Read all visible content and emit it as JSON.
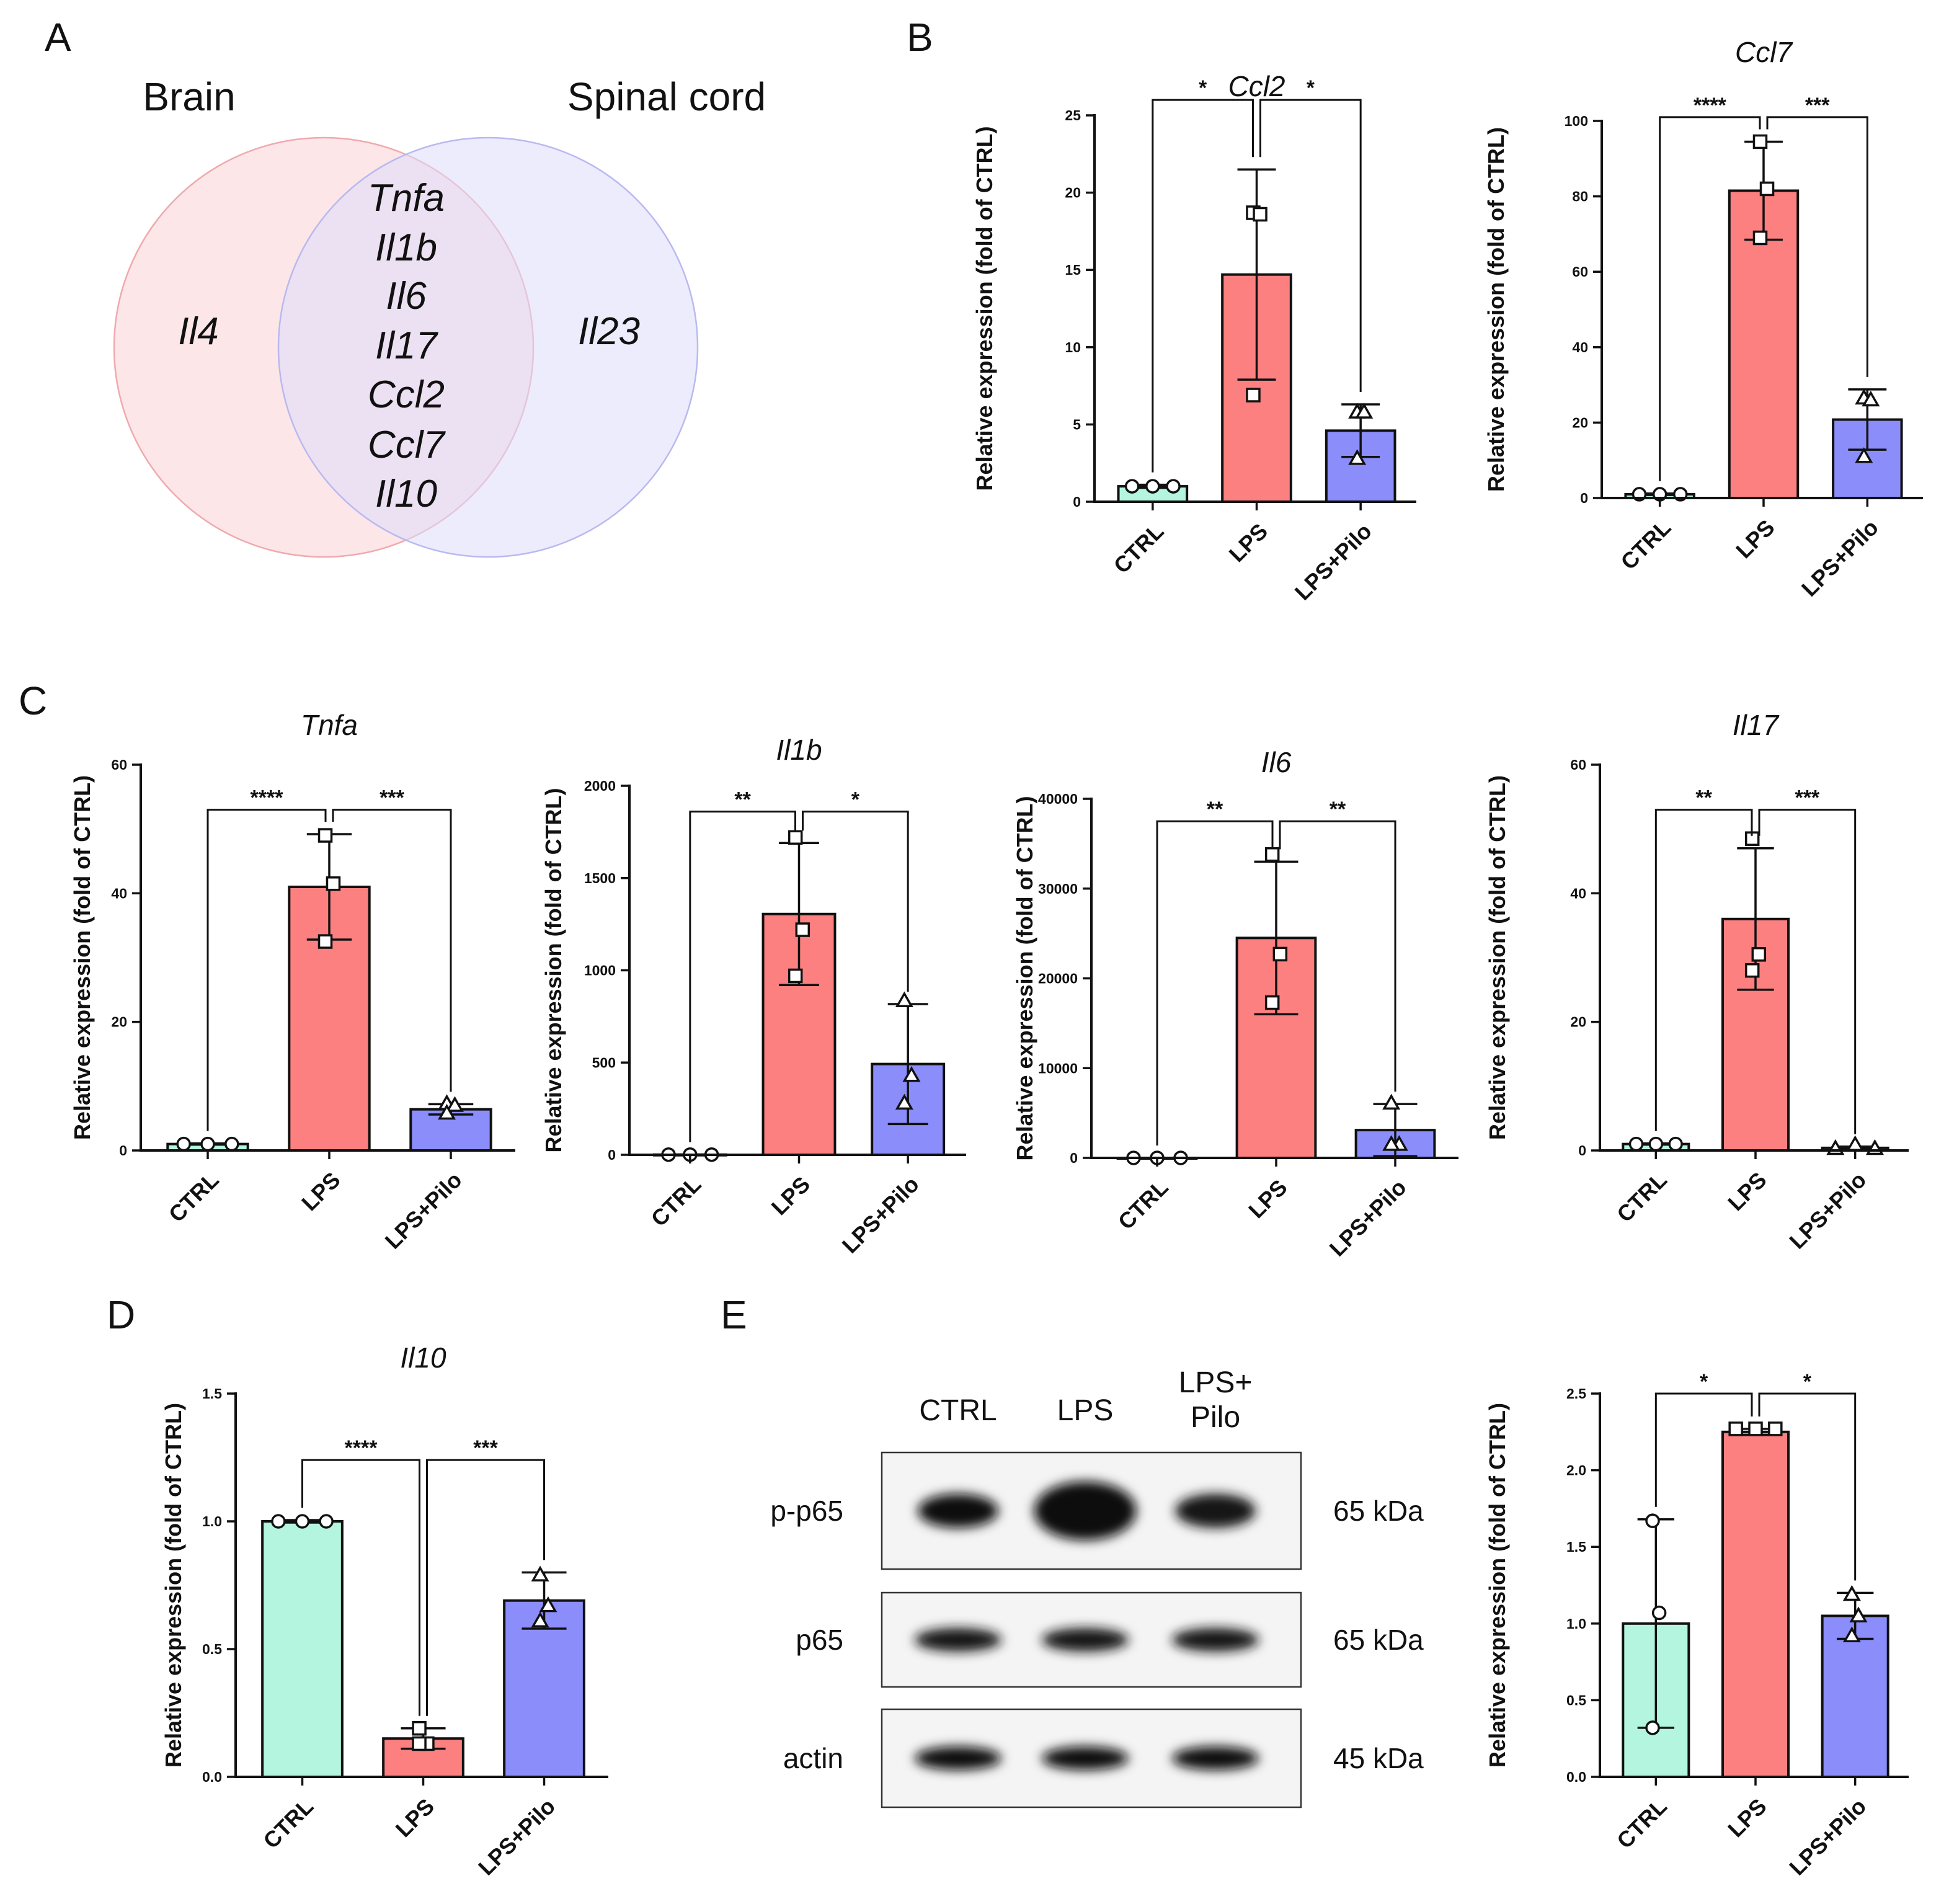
{
  "panels": {
    "A": "A",
    "B": "B",
    "C": "C",
    "D": "D",
    "E": "E"
  },
  "colors": {
    "CTRL": "#b3f5df",
    "LPS": "#fc8080",
    "LPS+Pilo": "#8b8dfb",
    "venn_left": "#fbd9dc",
    "venn_right": "#dcdcfc",
    "axis": "#111111"
  },
  "venn": {
    "left_set": "Brain",
    "right_set": "Spinal cord",
    "left_only": [
      "Il4"
    ],
    "right_only": [
      "Il23"
    ],
    "shared": [
      "Tnfa",
      "Il1b",
      "Il6",
      "Il17",
      "Ccl2",
      "Ccl7",
      "Il10"
    ]
  },
  "ylabel": "Relative expression (fold of CTRL)",
  "chart_data": [
    {
      "id": "ccl2",
      "type": "bar",
      "title": "Ccl2",
      "categories": [
        "CTRL",
        "LPS",
        "LPS+Pilo"
      ],
      "values": [
        1.0,
        14.7,
        4.6
      ],
      "errors": [
        0.1,
        6.8,
        1.7
      ],
      "points": [
        [
          1.0,
          1.0,
          1.0
        ],
        [
          18.7,
          18.6,
          6.9
        ],
        [
          5.8,
          5.8,
          2.8
        ]
      ],
      "markers": [
        "circle",
        "square",
        "triangle"
      ],
      "yticks": [
        0,
        5,
        10,
        15,
        20,
        25
      ],
      "ylim": [
        0,
        25
      ],
      "comparisons": [
        {
          "from": 0,
          "to": 1,
          "label": "*",
          "level": 26.0
        },
        {
          "from": 1,
          "to": 2,
          "label": "*",
          "level": 26.0
        }
      ]
    },
    {
      "id": "ccl7",
      "type": "bar",
      "title": "Ccl7",
      "categories": [
        "CTRL",
        "LPS",
        "LPS+Pilo"
      ],
      "values": [
        1.0,
        81.5,
        20.8
      ],
      "errors": [
        0.2,
        13.0,
        8.0
      ],
      "points": [
        [
          1.0,
          1.0,
          1.0
        ],
        [
          94.5,
          82.0,
          69.0
        ],
        [
          26.5,
          26.0,
          11.0
        ]
      ],
      "markers": [
        "circle",
        "square",
        "triangle"
      ],
      "yticks": [
        0,
        20,
        40,
        60,
        80,
        100
      ],
      "ylim": [
        0,
        100
      ],
      "comparisons": [
        {
          "from": 0,
          "to": 1,
          "label": "****",
          "level": 101.0
        },
        {
          "from": 1,
          "to": 2,
          "label": "***",
          "level": 101.0
        }
      ]
    },
    {
      "id": "tnfa",
      "type": "bar",
      "title": "Tnfa",
      "categories": [
        "CTRL",
        "LPS",
        "LPS+Pilo"
      ],
      "values": [
        1.0,
        41.0,
        6.4
      ],
      "errors": [
        0.1,
        8.2,
        0.8
      ],
      "points": [
        [
          1.0,
          1.0,
          1.0
        ],
        [
          49.0,
          41.5,
          32.5
        ],
        [
          7.3,
          7.0,
          5.8
        ]
      ],
      "markers": [
        "circle",
        "square",
        "triangle"
      ],
      "yticks": [
        0,
        20,
        40,
        60
      ],
      "ylim": [
        0,
        60
      ],
      "comparisons": [
        {
          "from": 0,
          "to": 1,
          "label": "****",
          "level": 53.0
        },
        {
          "from": 1,
          "to": 2,
          "label": "***",
          "level": 53.0
        }
      ]
    },
    {
      "id": "il1b",
      "type": "bar",
      "title": "Il1b",
      "categories": [
        "CTRL",
        "LPS",
        "LPS+Pilo"
      ],
      "values": [
        1.0,
        1305,
        492
      ],
      "errors": [
        0.1,
        385,
        325
      ],
      "points": [
        [
          1.0,
          1.0,
          1.0
        ],
        [
          1720,
          1220,
          970
        ],
        [
          835,
          430,
          280
        ]
      ],
      "markers": [
        "circle",
        "square",
        "triangle"
      ],
      "yticks": [
        0,
        500,
        1000,
        1500,
        2000
      ],
      "ylim": [
        0,
        2000
      ],
      "comparisons": [
        {
          "from": 0,
          "to": 1,
          "label": "**",
          "level": 1860
        },
        {
          "from": 1,
          "to": 2,
          "label": "*",
          "level": 1860
        }
      ]
    },
    {
      "id": "il6",
      "type": "bar",
      "title": "Il6",
      "categories": [
        "CTRL",
        "LPS",
        "LPS+Pilo"
      ],
      "values": [
        1.0,
        24500,
        3100
      ],
      "errors": [
        0.1,
        8500,
        2900
      ],
      "points": [
        [
          1.0,
          1.0,
          1.0
        ],
        [
          33800,
          22700,
          17300
        ],
        [
          6100,
          1500,
          1500
        ]
      ],
      "markers": [
        "circle",
        "square",
        "triangle"
      ],
      "yticks": [
        0,
        10000,
        20000,
        30000,
        40000
      ],
      "ylim": [
        0,
        40000
      ],
      "comparisons": [
        {
          "from": 0,
          "to": 1,
          "label": "**",
          "level": 37500
        },
        {
          "from": 1,
          "to": 2,
          "label": "**",
          "level": 37500
        }
      ]
    },
    {
      "id": "il17",
      "type": "bar",
      "title": "Il17",
      "categories": [
        "CTRL",
        "LPS",
        "LPS+Pilo"
      ],
      "values": [
        1.0,
        36.0,
        0.4
      ],
      "errors": [
        0.1,
        11.0,
        0.2
      ],
      "points": [
        [
          1.0,
          1.0,
          1.0
        ],
        [
          48.5,
          30.5,
          28.0
        ],
        [
          0.3,
          0.9,
          0.3
        ]
      ],
      "markers": [
        "circle",
        "square",
        "triangle"
      ],
      "yticks": [
        0,
        20,
        40,
        60
      ],
      "ylim": [
        0,
        60
      ],
      "comparisons": [
        {
          "from": 0,
          "to": 1,
          "label": "**",
          "level": 53.0
        },
        {
          "from": 1,
          "to": 2,
          "label": "***",
          "level": 53.0
        }
      ]
    },
    {
      "id": "il10",
      "type": "bar",
      "title": "Il10",
      "categories": [
        "CTRL",
        "LPS",
        "LPS+Pilo"
      ],
      "values": [
        1.0,
        0.15,
        0.69
      ],
      "errors": [
        0.005,
        0.04,
        0.11
      ],
      "points": [
        [
          1.0,
          1.0,
          1.0
        ],
        [
          0.19,
          0.13,
          0.13
        ],
        [
          0.79,
          0.67,
          0.61
        ]
      ],
      "markers": [
        "circle",
        "square",
        "triangle"
      ],
      "yticks": [
        0.0,
        0.5,
        1.0,
        1.5
      ],
      "ylim": [
        0,
        1.5
      ],
      "comparisons": [
        {
          "from": 0,
          "to": 1,
          "label": "****",
          "level": 1.24
        },
        {
          "from": 1,
          "to": 2,
          "label": "***",
          "level": 1.24
        }
      ]
    },
    {
      "id": "blotquant",
      "type": "bar",
      "title": "",
      "categories": [
        "CTRL",
        "LPS",
        "LPS+Pilo"
      ],
      "values": [
        1.0,
        2.25,
        1.05
      ],
      "errors": [
        0.68,
        0.02,
        0.15
      ],
      "points": [
        [
          1.67,
          1.07,
          0.32
        ],
        [
          2.27,
          2.27,
          2.27
        ],
        [
          1.19,
          1.05,
          0.92
        ]
      ],
      "markers": [
        "circle",
        "square",
        "triangle"
      ],
      "yticks": [
        0.0,
        0.5,
        1.0,
        1.5,
        2.0,
        2.5
      ],
      "ylim": [
        0,
        2.5
      ],
      "comparisons": [
        {
          "from": 0,
          "to": 1,
          "label": "*",
          "level": 2.5
        },
        {
          "from": 1,
          "to": 2,
          "label": "*",
          "level": 2.5
        }
      ]
    }
  ],
  "blot": {
    "columns": [
      "CTRL",
      "LPS",
      "LPS+\nPilo"
    ],
    "rows": [
      {
        "name": "p-p65",
        "kda": "65 kDa",
        "intensity": [
          0.85,
          1.0,
          0.7
        ]
      },
      {
        "name": "p65",
        "kda": "65 kDa",
        "intensity": [
          0.7,
          0.7,
          0.75
        ]
      },
      {
        "name": "actin",
        "kda": "45 kDa",
        "intensity": [
          0.8,
          0.8,
          0.8
        ]
      }
    ]
  }
}
